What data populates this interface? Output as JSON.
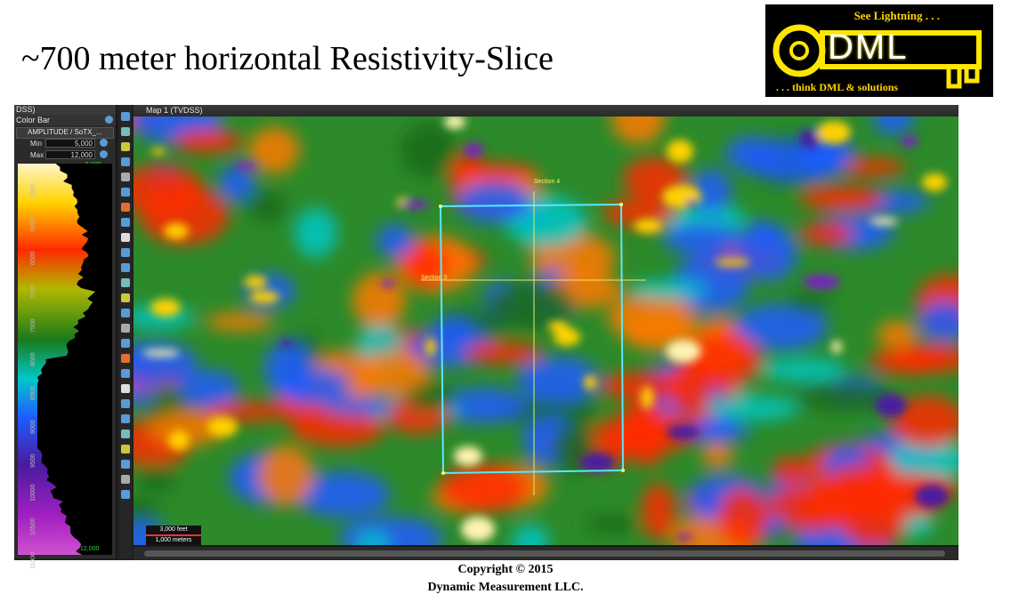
{
  "slide": {
    "title": "~700 meter horizontal Resistivity-Slice",
    "copyright_line1": "Copyright  © 2015",
    "copyright_line2": "Dynamic  Measurement LLC."
  },
  "logo": {
    "tagline_top": "See Lightning . . .",
    "wordmark": "DML",
    "tagline_bottom": ". . . think DML & solutions",
    "accent_color": "#ffe600"
  },
  "color_bar_panel": {
    "window_title": "DSS)",
    "header": "Color Bar",
    "attribute_select": "AMPLITUDE / SoTX_...",
    "min_label": "Min",
    "min_value": "5,000",
    "max_label": "Max",
    "max_value": "12,000",
    "top_marker": "5,000",
    "bottom_marker": "12,000",
    "axis_label": "AMPLITUDE",
    "ticks": [
      "5500",
      "6000",
      "6500",
      "7000",
      "7500",
      "8000",
      "8500",
      "9000",
      "9500",
      "10000",
      "10500",
      "11000"
    ]
  },
  "map": {
    "window_title": "Map 1 (TVDSS)",
    "section_labels": [
      "Section 4",
      "Section 3"
    ],
    "scale_feet": "3,000 feet",
    "scale_meters": "1,000 meters",
    "rectangle_color": "#58e8ff",
    "section_line_color": "#e8e870"
  }
}
